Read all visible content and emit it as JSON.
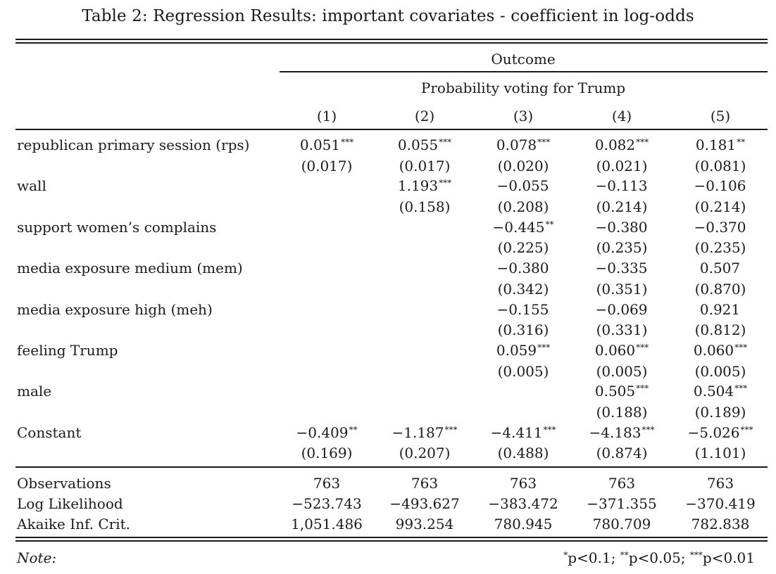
{
  "caption": "Table 2: Regression Results: important covariates - coefficient in log-odds",
  "header": {
    "outcome": "Outcome",
    "dependent_variable": "Probability voting for Trump",
    "columns": [
      "(1)",
      "(2)",
      "(3)",
      "(4)",
      "(5)"
    ]
  },
  "coefficients": [
    {
      "label": "republican primary session (rps)",
      "estimates": [
        [
          "0.051",
          "***"
        ],
        [
          "0.055",
          "***"
        ],
        [
          "0.078",
          "***"
        ],
        [
          "0.082",
          "***"
        ],
        [
          "0.181",
          "**"
        ]
      ],
      "std_errors": [
        "(0.017)",
        "(0.017)",
        "(0.020)",
        "(0.021)",
        "(0.081)"
      ]
    },
    {
      "label": "wall",
      "estimates": [
        [
          "",
          ""
        ],
        [
          "1.193",
          "***"
        ],
        [
          "−0.055",
          ""
        ],
        [
          "−0.113",
          ""
        ],
        [
          "−0.106",
          ""
        ]
      ],
      "std_errors": [
        "",
        "(0.158)",
        "(0.208)",
        "(0.214)",
        "(0.214)"
      ]
    },
    {
      "label": "support women’s complains",
      "estimates": [
        [
          "",
          ""
        ],
        [
          "",
          ""
        ],
        [
          "−0.445",
          "**"
        ],
        [
          "−0.380",
          ""
        ],
        [
          "−0.370",
          ""
        ]
      ],
      "std_errors": [
        "",
        "",
        "(0.225)",
        "(0.235)",
        "(0.235)"
      ]
    },
    {
      "label": "media exposure medium (mem)",
      "estimates": [
        [
          "",
          ""
        ],
        [
          "",
          ""
        ],
        [
          "−0.380",
          ""
        ],
        [
          "−0.335",
          ""
        ],
        [
          "0.507",
          ""
        ]
      ],
      "std_errors": [
        "",
        "",
        "(0.342)",
        "(0.351)",
        "(0.870)"
      ]
    },
    {
      "label": "media exposure high (meh)",
      "estimates": [
        [
          "",
          ""
        ],
        [
          "",
          ""
        ],
        [
          "−0.155",
          ""
        ],
        [
          "−0.069",
          ""
        ],
        [
          "0.921",
          ""
        ]
      ],
      "std_errors": [
        "",
        "",
        "(0.316)",
        "(0.331)",
        "(0.812)"
      ]
    },
    {
      "label": "feeling Trump",
      "estimates": [
        [
          "",
          ""
        ],
        [
          "",
          ""
        ],
        [
          "0.059",
          "***"
        ],
        [
          "0.060",
          "***"
        ],
        [
          "0.060",
          "***"
        ]
      ],
      "std_errors": [
        "",
        "",
        "(0.005)",
        "(0.005)",
        "(0.005)"
      ]
    },
    {
      "label": "male",
      "estimates": [
        [
          "",
          ""
        ],
        [
          "",
          ""
        ],
        [
          "",
          ""
        ],
        [
          "0.505",
          "***"
        ],
        [
          "0.504",
          "***"
        ]
      ],
      "std_errors": [
        "",
        "",
        "",
        "(0.188)",
        "(0.189)"
      ]
    },
    {
      "label": "Constant",
      "estimates": [
        [
          "−0.409",
          "**"
        ],
        [
          "−1.187",
          "***"
        ],
        [
          "−4.411",
          "***"
        ],
        [
          "−4.183",
          "***"
        ],
        [
          "−5.026",
          "***"
        ]
      ],
      "std_errors": [
        "(0.169)",
        "(0.207)",
        "(0.488)",
        "(0.874)",
        "(1.101)"
      ]
    }
  ],
  "statistics": [
    {
      "label": "Observations",
      "values": [
        "763",
        "763",
        "763",
        "763",
        "763"
      ]
    },
    {
      "label": "Log Likelihood",
      "values": [
        "−523.743",
        "−493.627",
        "−383.472",
        "−371.355",
        "−370.419"
      ]
    },
    {
      "label": "Akaike Inf. Crit.",
      "values": [
        "1,051.486",
        "993.254",
        "780.945",
        "780.709",
        "782.838"
      ]
    }
  ],
  "note": {
    "label": "Note:",
    "items": [
      {
        "stars": "*",
        "text": "p<0.1; "
      },
      {
        "stars": "**",
        "text": "p<0.05; "
      },
      {
        "stars": "***",
        "text": "p<0.01"
      }
    ]
  }
}
